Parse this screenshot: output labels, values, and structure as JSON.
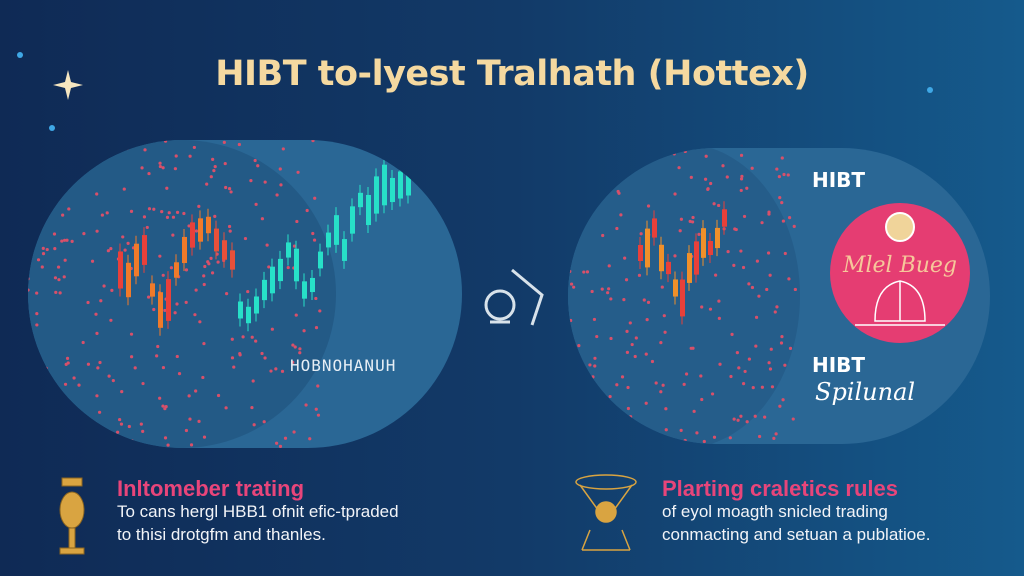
{
  "title": "HIBT to-lyest Tralhath (Hottex)",
  "left_panel": {
    "caption": "HOBNOHANUH"
  },
  "right_panel": {
    "label_top": "HIBT",
    "badge_text": "Mlel Bueg",
    "label_bottom": "HIBT",
    "signature": "Spilunal"
  },
  "sections": [
    {
      "heading": "Inltomeber trating",
      "line1": "To cans hergl HBB1 ofnit efic-tpraded",
      "line2": "to thisi drotgfm and thanles.",
      "icon": "trophy-icon"
    },
    {
      "heading": "Plarting craletics rules",
      "line1": "of eyol moagth snicled trading",
      "line2": "conmacting and setuan a publatioe.",
      "icon": "scale-icon"
    }
  ],
  "colors": {
    "heading": "#e8457a",
    "title": "#f5d9a0",
    "badge": "#e53d72",
    "candle_up": "#27e0c8",
    "candle_down": "#f07a2a"
  }
}
